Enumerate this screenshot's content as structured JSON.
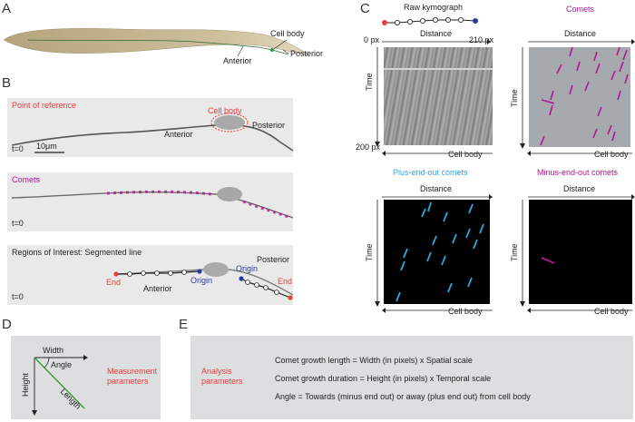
{
  "panels": {
    "A": {
      "letter": "A",
      "cell_body": "Cell body",
      "posterior": "Posterior",
      "anterior": "Anterior"
    },
    "B": {
      "letter": "B",
      "row1": {
        "title": "Point of reference",
        "cell_body": "Cell body",
        "anterior": "Anterior",
        "posterior": "Posterior",
        "t0": "t=0",
        "scale_bar": "10μm"
      },
      "row2": {
        "title": "Comets",
        "t0": "t=0"
      },
      "row3": {
        "title": "Regions of Interest: Segmented line",
        "posterior": "Posterior",
        "anterior": "Anterior",
        "end_left": "End",
        "origin_left": "Origin",
        "origin_right": "Origin",
        "end_right": "End",
        "t0": "t=0"
      }
    },
    "C": {
      "letter": "C",
      "raw": {
        "title": "Raw kymograph",
        "distance": "Distance",
        "px_start": "0 px",
        "px_end": "210 px",
        "time": "Time",
        "px_time": "200 px",
        "cell_body": "Cell body"
      },
      "comets": {
        "title": "Comets",
        "distance": "Distance",
        "time": "Time",
        "cell_body": "Cell body"
      },
      "plus": {
        "title": "Plus-end-out comets",
        "distance": "Distance",
        "time": "Time",
        "cell_body": "Cell body"
      },
      "minus": {
        "title": "Minus-end-out comets",
        "distance": "Distance",
        "time": "Time",
        "cell_body": "Cell body"
      }
    },
    "D": {
      "letter": "D",
      "width": "Width",
      "angle": "Angle",
      "height": "Height",
      "length": "Length",
      "caption_line1": "Measurement",
      "caption_line2": "parameters"
    },
    "E": {
      "letter": "E",
      "caption_line1": "Analysis",
      "caption_line2": "parameters",
      "line1": "Comet growth length = Width (in pixels) x Spatial scale",
      "line2": "Comet growth duration = Height (in pixels) x Temporal scale",
      "line3": "Angle = Towards (minus end out) or away (plus end out) from cell body"
    }
  },
  "colors": {
    "red": "#e5403f",
    "magenta": "#b0198f",
    "cyan": "#2fa8de",
    "blue_origin": "#2b3a9e",
    "green": "#2e9a3a"
  }
}
